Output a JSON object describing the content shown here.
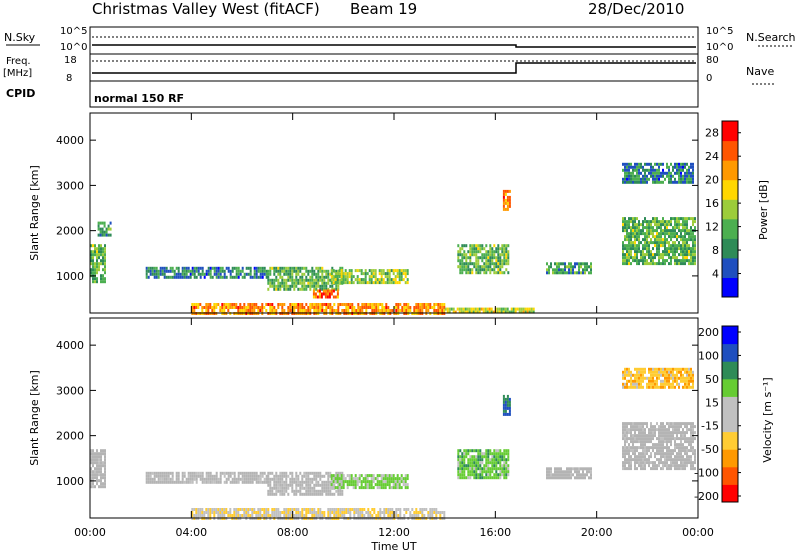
{
  "title": {
    "station": "Christmas Valley West (fitACF)",
    "beam": "Beam 19",
    "date": "28/Dec/2010"
  },
  "summary": {
    "nsky_label": "N.Sky",
    "nsearch_label": "N.Search",
    "nsky_ticks": [
      "10^5",
      "10^0"
    ],
    "nsearch_ticks": [
      "10^5",
      "10^0"
    ],
    "freq_label": "Freq.",
    "freq_unit": "[MHz]",
    "freq_ticks": [
      "18",
      "8"
    ],
    "nave_label": "Nave",
    "nave_ticks": [
      "80",
      "0"
    ],
    "cpid_label": "CPID",
    "cpid_value": "normal 150 RF"
  },
  "colors": {
    "power_scale": [
      "#0000ff",
      "#1f4fbf",
      "#2e8b57",
      "#4caf50",
      "#9ccc3a",
      "#ffd700",
      "#ff9900",
      "#ff5500",
      "#ff0000"
    ],
    "velocity_scale": [
      "#ff0000",
      "#ff5500",
      "#ff9900",
      "#ffcc33",
      "#c0c0c0",
      "#c0c0c0",
      "#66cc33",
      "#2e8b57",
      "#1f4fbf",
      "#0000ff"
    ],
    "ground_scatter": "#b4b4b4"
  },
  "chart_data": [
    {
      "type": "heatmap",
      "name": "power",
      "ylabel": "Slant Range [km]",
      "ylim": [
        180,
        4600
      ],
      "yticks": [
        "1000",
        "2000",
        "3000",
        "4000"
      ],
      "xlim": [
        "00:00",
        "24:00"
      ],
      "xticks": [],
      "colorbar_label": "Power [dB]",
      "colorbar_ticks": [
        "4",
        "8",
        "12",
        "16",
        "20",
        "24",
        "28"
      ],
      "colorbar_range": [
        0,
        30
      ],
      "echo_regions": [
        {
          "t0": 0.0,
          "t1": 0.6,
          "r0": 900,
          "r1": 1700,
          "value": 12
        },
        {
          "t0": 0.3,
          "t1": 0.8,
          "r0": 1900,
          "r1": 2200,
          "value": 10
        },
        {
          "t0": 2.2,
          "t1": 7.0,
          "r0": 1000,
          "r1": 1200,
          "value": 8
        },
        {
          "t0": 7.0,
          "t1": 10.0,
          "r0": 700,
          "r1": 1200,
          "value": 12
        },
        {
          "t0": 9.5,
          "t1": 12.5,
          "r0": 850,
          "r1": 1150,
          "value": 14
        },
        {
          "t0": 8.8,
          "t1": 9.8,
          "r0": 550,
          "r1": 700,
          "value": 24
        },
        {
          "t0": 4.0,
          "t1": 14.0,
          "r0": 200,
          "r1": 400,
          "value": 22
        },
        {
          "t0": 14.0,
          "t1": 17.5,
          "r0": 180,
          "r1": 300,
          "value": 16
        },
        {
          "t0": 14.5,
          "t1": 16.5,
          "r0": 1100,
          "r1": 1700,
          "value": 12
        },
        {
          "t0": 16.3,
          "t1": 16.6,
          "r0": 2500,
          "r1": 2900,
          "value": 22
        },
        {
          "t0": 18.0,
          "t1": 19.8,
          "r0": 1050,
          "r1": 1300,
          "value": 10
        },
        {
          "t0": 21.0,
          "t1": 23.9,
          "r0": 1300,
          "r1": 2300,
          "value": 12
        },
        {
          "t0": 21.0,
          "t1": 23.8,
          "r0": 3100,
          "r1": 3500,
          "value": 8
        }
      ]
    },
    {
      "type": "heatmap",
      "name": "velocity",
      "ylabel": "Slant Range [km]",
      "ylim": [
        180,
        4600
      ],
      "yticks": [
        "1000",
        "2000",
        "3000",
        "4000"
      ],
      "xlim": [
        "00:00",
        "24:00"
      ],
      "xticks": [
        "00:00",
        "04:00",
        "08:00",
        "12:00",
        "16:00",
        "20:00",
        "00:00"
      ],
      "xlabel": "Time UT",
      "colorbar_label": "Velocity [m s⁻¹]",
      "colorbar_ticks": [
        "200",
        "100",
        "50",
        "15",
        "-15",
        "-50",
        "-100",
        "-200"
      ],
      "colorbar_range": [
        -250,
        250
      ],
      "echo_regions": [
        {
          "t0": 0.0,
          "t1": 0.6,
          "r0": 900,
          "r1": 1700,
          "value": 0,
          "ground_scatter": true
        },
        {
          "t0": 2.2,
          "t1": 7.0,
          "r0": 1000,
          "r1": 1200,
          "value": 0,
          "ground_scatter": true
        },
        {
          "t0": 7.0,
          "t1": 10.0,
          "r0": 700,
          "r1": 1200,
          "value": 0,
          "ground_scatter": true
        },
        {
          "t0": 9.5,
          "t1": 12.5,
          "r0": 850,
          "r1": 1150,
          "value": 60
        },
        {
          "t0": 4.0,
          "t1": 14.0,
          "r0": 200,
          "r1": 400,
          "value": -40
        },
        {
          "t0": 14.5,
          "t1": 16.5,
          "r0": 1100,
          "r1": 1700,
          "value": 80
        },
        {
          "t0": 16.3,
          "t1": 16.6,
          "r0": 2500,
          "r1": 2900,
          "value": 150
        },
        {
          "t0": 18.0,
          "t1": 19.8,
          "r0": 1050,
          "r1": 1300,
          "value": 0,
          "ground_scatter": true
        },
        {
          "t0": 21.0,
          "t1": 23.9,
          "r0": 1300,
          "r1": 2300,
          "value": 0,
          "ground_scatter": true
        },
        {
          "t0": 21.0,
          "t1": 23.8,
          "r0": 3100,
          "r1": 3500,
          "value": -80
        }
      ]
    }
  ]
}
